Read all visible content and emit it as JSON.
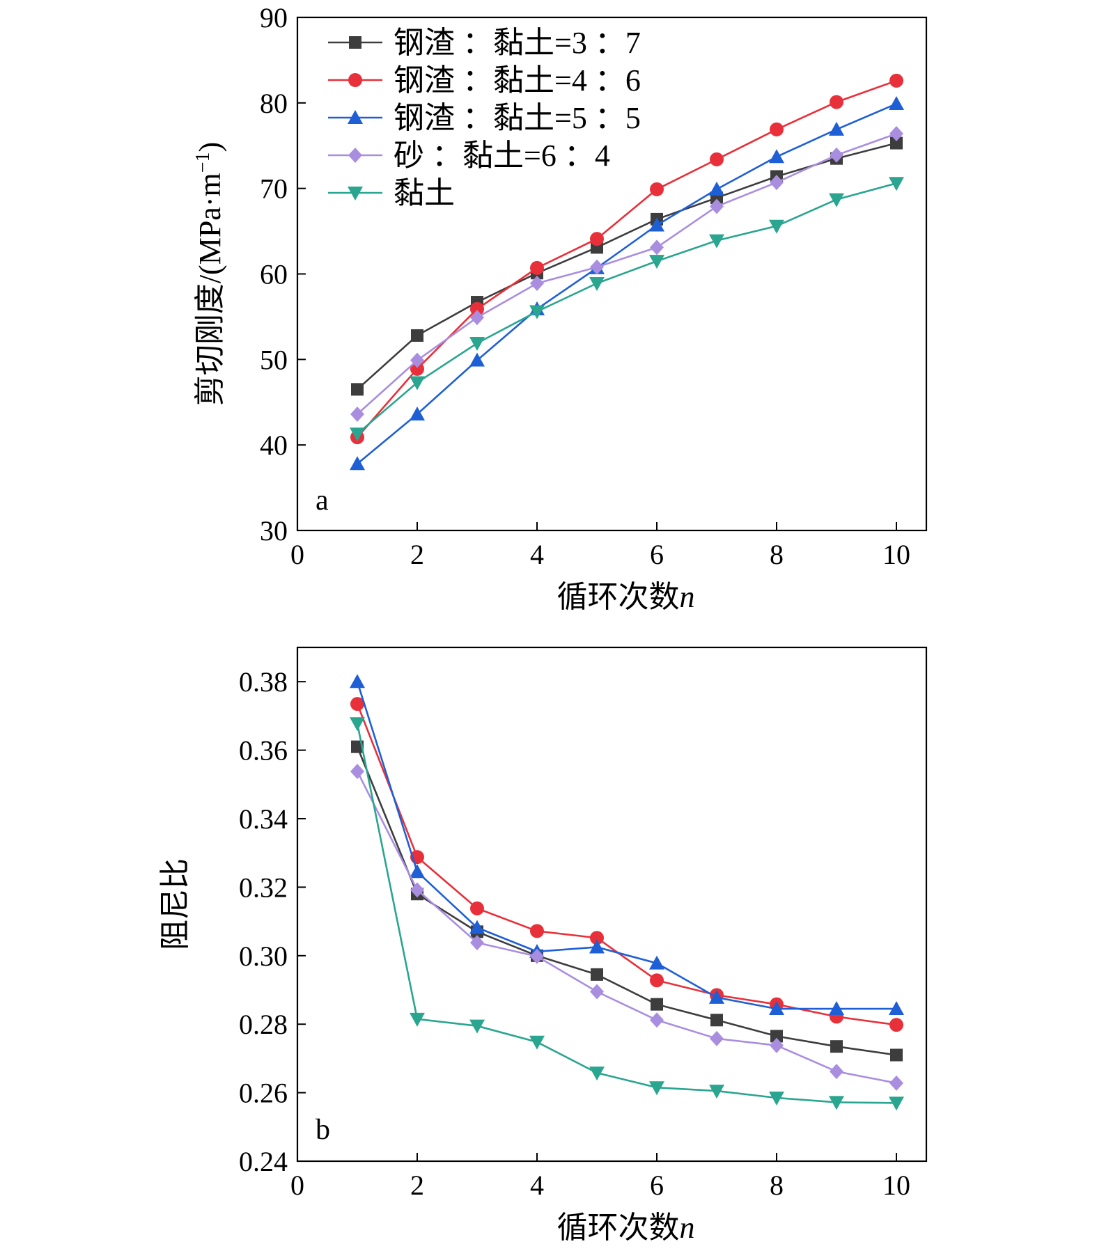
{
  "colors": {
    "series_1": "#3d3d3d",
    "series_2": "#e8303a",
    "series_3": "#1f5fd6",
    "series_4": "#a98ee0",
    "series_5": "#2aa58f"
  },
  "markers": [
    "square",
    "circle",
    "triangle-up",
    "diamond",
    "triangle-down"
  ],
  "chart_data": [
    {
      "type": "line",
      "panel_label": "a",
      "xlabel": "循环次数",
      "xlabel_var": "n",
      "ylabel": "剪切刚度/(MPa·m",
      "ylabel_sup": "−1",
      "ylabel_close": ")",
      "xlim": [
        0,
        10.5
      ],
      "ylim": [
        30,
        90
      ],
      "xticks": [
        0,
        2,
        4,
        6,
        8,
        10
      ],
      "xtick_labels": [
        "0",
        "2",
        "4",
        "6",
        "8",
        "10"
      ],
      "yticks": [
        30,
        40,
        50,
        60,
        70,
        80,
        90
      ],
      "ytick_labels": [
        "30",
        "40",
        "50",
        "60",
        "70",
        "80",
        "90"
      ],
      "grid": false,
      "legend_position": "top-left",
      "x": [
        1,
        2,
        3,
        4,
        5,
        6,
        7,
        8,
        9,
        10
      ],
      "series": [
        {
          "name": "钢渣 ：黏土=3 ：7",
          "values": [
            46.5,
            52.8,
            56.7,
            60.1,
            63.1,
            66.4,
            68.9,
            71.4,
            73.5,
            75.3
          ]
        },
        {
          "name": "钢渣 ：黏土=4 ：6",
          "values": [
            40.9,
            48.9,
            55.9,
            60.7,
            64.1,
            69.9,
            73.4,
            76.9,
            80.1,
            82.6
          ]
        },
        {
          "name": "钢渣 ：黏土=5 ：5",
          "values": [
            37.8,
            43.6,
            49.9,
            55.9,
            60.7,
            65.7,
            69.9,
            73.7,
            76.9,
            79.9
          ]
        },
        {
          "name": "砂 ：黏土=6 ：4",
          "values": [
            43.6,
            49.9,
            54.9,
            58.9,
            60.8,
            63.1,
            67.9,
            70.7,
            73.9,
            76.4
          ]
        },
        {
          "name": "黏土",
          "values": [
            41.3,
            47.3,
            51.9,
            55.6,
            58.9,
            61.5,
            63.9,
            65.6,
            68.7,
            70.6
          ]
        }
      ]
    },
    {
      "type": "line",
      "panel_label": "b",
      "xlabel": "循环次数",
      "xlabel_var": "n",
      "ylabel": "阻尼比",
      "xlim": [
        0,
        10.5
      ],
      "ylim": [
        0.24,
        0.39
      ],
      "xticks": [
        0,
        2,
        4,
        6,
        8,
        10
      ],
      "xtick_labels": [
        "0",
        "2",
        "4",
        "6",
        "8",
        "10"
      ],
      "yticks": [
        0.24,
        0.26,
        0.28,
        0.3,
        0.32,
        0.34,
        0.36,
        0.38
      ],
      "ytick_labels": [
        "0.24",
        "0.26",
        "0.28",
        "0.30",
        "0.32",
        "0.34",
        "0.36",
        "0.38"
      ],
      "grid": false,
      "legend_position": "none",
      "x": [
        1,
        2,
        3,
        4,
        5,
        6,
        7,
        8,
        9,
        10
      ],
      "series": [
        {
          "values": [
            0.361,
            0.318,
            0.307,
            0.3,
            0.2945,
            0.2858,
            0.2812,
            0.2765,
            0.2735,
            0.271
          ]
        },
        {
          "values": [
            0.3735,
            0.3288,
            0.3138,
            0.3072,
            0.3052,
            0.2928,
            0.2885,
            0.2858,
            0.2822,
            0.2798
          ]
        },
        {
          "values": [
            0.38,
            0.3245,
            0.3082,
            0.3012,
            0.3025,
            0.2978,
            0.2878,
            0.2845,
            0.2845,
            0.2845
          ]
        },
        {
          "values": [
            0.3538,
            0.3192,
            0.3038,
            0.2998,
            0.2895,
            0.2812,
            0.2758,
            0.2738,
            0.2662,
            0.2628
          ]
        },
        {
          "values": [
            0.3678,
            0.2815,
            0.2795,
            0.2748,
            0.2658,
            0.2615,
            0.2605,
            0.2585,
            0.2572,
            0.257
          ]
        }
      ]
    }
  ]
}
